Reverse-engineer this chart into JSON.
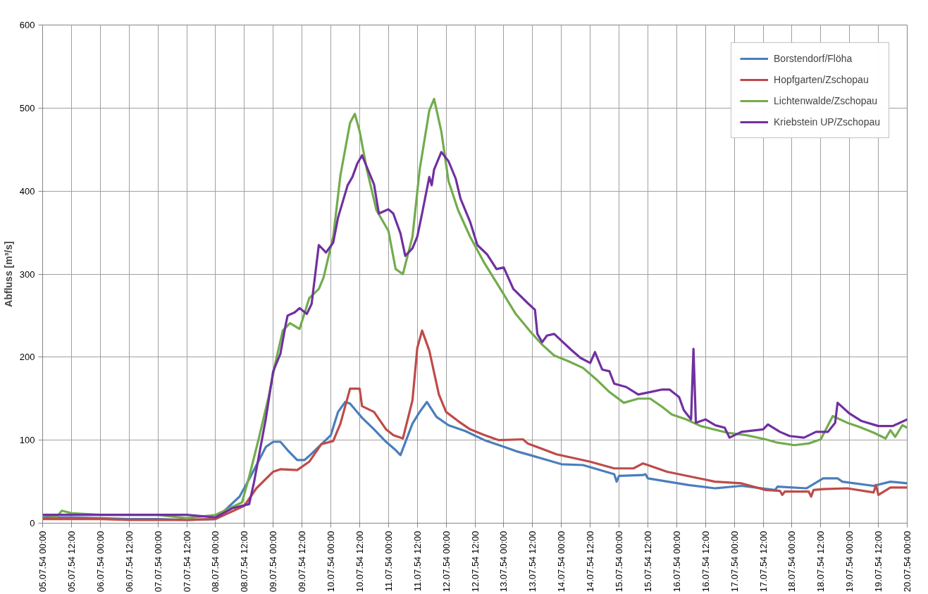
{
  "chart_data": {
    "type": "line",
    "ylabel": "Abfluss [m³/s]",
    "xlim": [
      "1954-07-05T00:00",
      "1954-07-20T00:00"
    ],
    "xticks": [
      {
        "value": "1954-07-05T00:00",
        "label": "05.07.54 00:00"
      },
      {
        "value": "1954-07-05T12:00",
        "label": "05.07.54 12:00"
      },
      {
        "value": "1954-07-06T00:00",
        "label": "06.07.54 00:00"
      },
      {
        "value": "1954-07-06T12:00",
        "label": "06.07.54 12:00"
      },
      {
        "value": "1954-07-07T00:00",
        "label": "07.07.54 00:00"
      },
      {
        "value": "1954-07-07T12:00",
        "label": "07.07.54 12:00"
      },
      {
        "value": "1954-07-08T00:00",
        "label": "08.07.54 00:00"
      },
      {
        "value": "1954-07-08T12:00",
        "label": "08.07.54 12:00"
      },
      {
        "value": "1954-07-09T00:00",
        "label": "09.07.54 00:00"
      },
      {
        "value": "1954-07-09T12:00",
        "label": "09.07.54 12:00"
      },
      {
        "value": "1954-07-10T00:00",
        "label": "10.07.54 00:00"
      },
      {
        "value": "1954-07-10T12:00",
        "label": "10.07.54 12:00"
      },
      {
        "value": "1954-07-11T00:00",
        "label": "11.07.54 00:00"
      },
      {
        "value": "1954-07-11T12:00",
        "label": "11.07.54 12:00"
      },
      {
        "value": "1954-07-12T00:00",
        "label": "12.07.54 00:00"
      },
      {
        "value": "1954-07-12T12:00",
        "label": "12.07.54 12:00"
      },
      {
        "value": "1954-07-13T00:00",
        "label": "13.07.54 00:00"
      },
      {
        "value": "1954-07-13T12:00",
        "label": "13.07.54 12:00"
      },
      {
        "value": "1954-07-14T00:00",
        "label": "14.07.54 00:00"
      },
      {
        "value": "1954-07-14T12:00",
        "label": "14.07.54 12:00"
      },
      {
        "value": "1954-07-15T00:00",
        "label": "15.07.54 00:00"
      },
      {
        "value": "1954-07-15T12:00",
        "label": "15.07.54 12:00"
      },
      {
        "value": "1954-07-16T00:00",
        "label": "16.07.54 00:00"
      },
      {
        "value": "1954-07-16T12:00",
        "label": "16.07.54 12:00"
      },
      {
        "value": "1954-07-17T00:00",
        "label": "17.07.54 00:00"
      },
      {
        "value": "1954-07-17T12:00",
        "label": "17.07.54 12:00"
      },
      {
        "value": "1954-07-18T00:00",
        "label": "18.07.54 00:00"
      },
      {
        "value": "1954-07-18T12:00",
        "label": "18.07.54 12:00"
      },
      {
        "value": "1954-07-19T00:00",
        "label": "19.07.54 00:00"
      },
      {
        "value": "1954-07-19T12:00",
        "label": "19.07.54 12:00"
      },
      {
        "value": "1954-07-20T00:00",
        "label": "20.07.54 00:00"
      }
    ],
    "ylim": [
      0,
      600
    ],
    "yticks": [
      0,
      100,
      200,
      300,
      400,
      500,
      600
    ],
    "grid": true,
    "legend": "top right",
    "line_style": "solid",
    "marker": "none",
    "series": [
      {
        "name": "Borstendorf/Flöha",
        "color": "#4a7ebb",
        "x": [
          "1954-07-05T00:00",
          "1954-07-05T12:00",
          "1954-07-06T00:00",
          "1954-07-06T12:00",
          "1954-07-07T00:00",
          "1954-07-07T12:00",
          "1954-07-08T00:00",
          "1954-07-08T10:00",
          "1954-07-08T14:00",
          "1954-07-08T21:00",
          "1954-07-09T00:00",
          "1954-07-09T03:00",
          "1954-07-09T06:00",
          "1954-07-09T10:00",
          "1954-07-09T13:00",
          "1954-07-09T15:00",
          "1954-07-09T20:00",
          "1954-07-10T00:00",
          "1954-07-10T03:00",
          "1954-07-10T06:00",
          "1954-07-10T08:00",
          "1954-07-10T13:00",
          "1954-07-10T18:00",
          "1954-07-10T23:00",
          "1954-07-11T03:00",
          "1954-07-11T05:00",
          "1954-07-11T10:00",
          "1954-07-11T13:00",
          "1954-07-11T16:00",
          "1954-07-11T20:00",
          "1954-07-12T01:00",
          "1954-07-12T08:00",
          "1954-07-12T16:00",
          "1954-07-13T00:00",
          "1954-07-13T06:00",
          "1954-07-13T11:00",
          "1954-07-14T00:00",
          "1954-07-14T09:00",
          "1954-07-14T22:00",
          "1954-07-14T23:00",
          "1954-07-15T00:00",
          "1954-07-15T10:00",
          "1954-07-15T11:00",
          "1954-07-15T12:00",
          "1954-07-16T05:00",
          "1954-07-16T16:00",
          "1954-07-17T03:00",
          "1954-07-17T17:00",
          "1954-07-17T18:00",
          "1954-07-18T06:00",
          "1954-07-18T13:00",
          "1954-07-18T19:00",
          "1954-07-18T21:00",
          "1954-07-19T10:00",
          "1954-07-19T17:00",
          "1954-07-20T00:00"
        ],
        "values": [
          7,
          7,
          6,
          5,
          5,
          4,
          5,
          32,
          53,
          92,
          98,
          98,
          88,
          76,
          76,
          81,
          95,
          106,
          134,
          146,
          144,
          127,
          113,
          98,
          88,
          82,
          120,
          134,
          146,
          128,
          118,
          111,
          100,
          92,
          86,
          82,
          71,
          70,
          59,
          50,
          57,
          58,
          59,
          54,
          46,
          42,
          45,
          40,
          44,
          42,
          54,
          54,
          50,
          45,
          50,
          48
        ]
      },
      {
        "name": "Hopfgarten/Zschopau",
        "color": "#be4b48",
        "x": [
          "1954-07-05T00:00",
          "1954-07-05T12:00",
          "1954-07-06T00:00",
          "1954-07-06T12:00",
          "1954-07-07T00:00",
          "1954-07-07T12:00",
          "1954-07-08T00:00",
          "1954-07-08T12:00",
          "1954-07-08T17:00",
          "1954-07-09T00:00",
          "1954-07-09T03:00",
          "1954-07-09T10:00",
          "1954-07-09T15:00",
          "1954-07-09T20:00",
          "1954-07-10T01:00",
          "1954-07-10T04:00",
          "1954-07-10T08:00",
          "1954-07-10T12:00",
          "1954-07-10T13:00",
          "1954-07-10T18:00",
          "1954-07-10T23:00",
          "1954-07-11T02:00",
          "1954-07-11T06:00",
          "1954-07-11T10:00",
          "1954-07-11T12:00",
          "1954-07-11T14:00",
          "1954-07-11T17:00",
          "1954-07-11T21:00",
          "1954-07-12T00:00",
          "1954-07-12T05:00",
          "1954-07-12T10:00",
          "1954-07-12T16:00",
          "1954-07-12T22:00",
          "1954-07-13T08:00",
          "1954-07-13T10:00",
          "1954-07-13T22:00",
          "1954-07-14T12:00",
          "1954-07-14T22:00",
          "1954-07-15T06:00",
          "1954-07-15T10:00",
          "1954-07-15T12:00",
          "1954-07-15T20:00",
          "1954-07-16T11:00",
          "1954-07-16T16:00",
          "1954-07-17T03:00",
          "1954-07-17T13:00",
          "1954-07-17T19:00",
          "1954-07-17T20:00",
          "1954-07-17T21:00",
          "1954-07-18T07:00",
          "1954-07-18T08:00",
          "1954-07-18T09:00",
          "1954-07-18T13:00",
          "1954-07-18T23:00",
          "1954-07-19T10:00",
          "1954-07-19T11:00",
          "1954-07-19T12:00",
          "1954-07-19T17:00",
          "1954-07-20T00:00"
        ],
        "values": [
          5,
          5,
          5,
          4,
          4,
          4,
          5,
          21,
          42,
          62,
          65,
          64,
          74,
          95,
          99,
          120,
          162,
          162,
          141,
          134,
          113,
          106,
          102,
          148,
          211,
          232,
          208,
          155,
          134,
          123,
          113,
          106,
          100,
          101,
          96,
          83,
          74,
          66,
          66,
          72,
          70,
          62,
          53,
          50,
          48,
          40,
          39,
          34,
          38,
          38,
          32,
          40,
          41,
          42,
          37,
          46,
          34,
          43,
          43
        ]
      },
      {
        "name": "Lichtenwalde/Zschopau",
        "color": "#72ac4d",
        "x": [
          "1954-07-05T00:00",
          "1954-07-05T06:00",
          "1954-07-05T08:00",
          "1954-07-05T12:00",
          "1954-07-06T00:00",
          "1954-07-06T12:00",
          "1954-07-07T00:00",
          "1954-07-07T12:00",
          "1954-07-08T00:00",
          "1954-07-08T11:00",
          "1954-07-08T14:00",
          "1954-07-08T18:00",
          "1954-07-08T22:00",
          "1954-07-09T01:00",
          "1954-07-09T04:00",
          "1954-07-09T07:00",
          "1954-07-09T11:00",
          "1954-07-09T15:00",
          "1954-07-09T19:00",
          "1954-07-09T21:00",
          "1954-07-10T01:00",
          "1954-07-10T04:00",
          "1954-07-10T08:00",
          "1954-07-10T10:00",
          "1954-07-10T12:00",
          "1954-07-10T15:00",
          "1954-07-10T19:00",
          "1954-07-11T00:00",
          "1954-07-11T03:00",
          "1954-07-11T06:00",
          "1954-07-11T10:00",
          "1954-07-11T13:00",
          "1954-07-11T17:00",
          "1954-07-11T19:00",
          "1954-07-11T22:00",
          "1954-07-12T01:00",
          "1954-07-12T05:00",
          "1954-07-12T10:00",
          "1954-07-12T16:00",
          "1954-07-12T22:00",
          "1954-07-13T05:00",
          "1954-07-13T11:00",
          "1954-07-13T16:00",
          "1954-07-13T21:00",
          "1954-07-14T03:00",
          "1954-07-14T09:00",
          "1954-07-14T15:00",
          "1954-07-14T20:00",
          "1954-07-15T02:00",
          "1954-07-15T08:00",
          "1954-07-15T13:00",
          "1954-07-15T18:00",
          "1954-07-15T22:00",
          "1954-07-16T04:00",
          "1954-07-16T10:00",
          "1954-07-16T21:00",
          "1954-07-17T05:00",
          "1954-07-17T13:00",
          "1954-07-17T18:00",
          "1954-07-18T01:00",
          "1954-07-18T07:00",
          "1954-07-18T12:00",
          "1954-07-18T17:00",
          "1954-07-18T23:00",
          "1954-07-19T04:00",
          "1954-07-19T10:00",
          "1954-07-19T15:00",
          "1954-07-19T17:00",
          "1954-07-19T19:00",
          "1954-07-19T22:00",
          "1954-07-20T00:00"
        ],
        "values": [
          10,
          8,
          15,
          12,
          10,
          10,
          10,
          6,
          10,
          25,
          56,
          102,
          151,
          194,
          232,
          241,
          234,
          271,
          282,
          296,
          345,
          419,
          482,
          493,
          472,
          426,
          377,
          352,
          306,
          300,
          345,
          426,
          497,
          511,
          472,
          412,
          377,
          345,
          313,
          285,
          252,
          231,
          215,
          202,
          195,
          187,
          172,
          158,
          145,
          150,
          150,
          140,
          131,
          125,
          117,
          109,
          106,
          101,
          97,
          94,
          96,
          101,
          129,
          121,
          116,
          109,
          102,
          112,
          104,
          118,
          115
        ]
      },
      {
        "name": "Kriebstein UP/Zschopau",
        "color": "#7030a0",
        "x": [
          "1954-07-05T00:00",
          "1954-07-06T00:00",
          "1954-07-06T12:00",
          "1954-07-07T00:00",
          "1954-07-07T12:00",
          "1954-07-08T00:00",
          "1954-07-08T07:00",
          "1954-07-08T14:00",
          "1954-07-08T16:00",
          "1954-07-08T21:00",
          "1954-07-09T00:00",
          "1954-07-09T03:00",
          "1954-07-09T05:00",
          "1954-07-09T06:00",
          "1954-07-09T09:00",
          "1954-07-09T11:00",
          "1954-07-09T14:00",
          "1954-07-09T16:00",
          "1954-07-09T19:00",
          "1954-07-09T22:00",
          "1954-07-10T01:00",
          "1954-07-10T03:00",
          "1954-07-10T07:00",
          "1954-07-10T09:00",
          "1954-07-10T11:00",
          "1954-07-10T13:00",
          "1954-07-10T15:00",
          "1954-07-10T18:00",
          "1954-07-10T20:00",
          "1954-07-11T00:00",
          "1954-07-11T02:00",
          "1954-07-11T05:00",
          "1954-07-11T07:00",
          "1954-07-11T10:00",
          "1954-07-11T12:00",
          "1954-07-11T14:00",
          "1954-07-11T17:00",
          "1954-07-11T18:00",
          "1954-07-11T19:00",
          "1954-07-11T22:00",
          "1954-07-12T01:00",
          "1954-07-12T04:00",
          "1954-07-12T06:00",
          "1954-07-12T10:00",
          "1954-07-12T13:00",
          "1954-07-12T17:00",
          "1954-07-12T21:00",
          "1954-07-13T00:00",
          "1954-07-13T04:00",
          "1954-07-13T10:00",
          "1954-07-13T13:00",
          "1954-07-13T14:00",
          "1954-07-13T16:00",
          "1954-07-13T18:00",
          "1954-07-13T21:00",
          "1954-07-14T04:00",
          "1954-07-14T08:00",
          "1954-07-14T12:00",
          "1954-07-14T14:00",
          "1954-07-14T17:00",
          "1954-07-14T20:00",
          "1954-07-14T22:00",
          "1954-07-15T03:00",
          "1954-07-15T08:00",
          "1954-07-15T13:00",
          "1954-07-15T18:00",
          "1954-07-15T21:00",
          "1954-07-16T01:00",
          "1954-07-16T03:00",
          "1954-07-16T06:00",
          "1954-07-16T07:00",
          "1954-07-16T08:00",
          "1954-07-16T12:00",
          "1954-07-16T16:00",
          "1954-07-16T20:00",
          "1954-07-16T22:00",
          "1954-07-17T03:00",
          "1954-07-17T12:00",
          "1954-07-17T14:00",
          "1954-07-17T19:00",
          "1954-07-17T23:00",
          "1954-07-18T05:00",
          "1954-07-18T10:00",
          "1954-07-18T15:00",
          "1954-07-18T18:00",
          "1954-07-18T19:00",
          "1954-07-19T00:00",
          "1954-07-19T05:00",
          "1954-07-19T12:00",
          "1954-07-19T18:00",
          "1954-07-20T00:00"
        ],
        "values": [
          10,
          10,
          10,
          10,
          10,
          7,
          18,
          23,
          49,
          127,
          183,
          204,
          236,
          250,
          254,
          259,
          252,
          264,
          335,
          326,
          338,
          368,
          407,
          417,
          433,
          443,
          429,
          408,
          373,
          378,
          373,
          349,
          322,
          331,
          345,
          373,
          417,
          407,
          426,
          447,
          436,
          415,
          391,
          363,
          335,
          324,
          306,
          308,
          282,
          265,
          257,
          228,
          218,
          226,
          228,
          209,
          199,
          193,
          206,
          185,
          183,
          168,
          164,
          155,
          158,
          161,
          161,
          152,
          136,
          125,
          210,
          121,
          125,
          118,
          115,
          103,
          110,
          113,
          119,
          110,
          105,
          103,
          110,
          110,
          121,
          145,
          132,
          123,
          117,
          117,
          125
        ]
      }
    ]
  }
}
